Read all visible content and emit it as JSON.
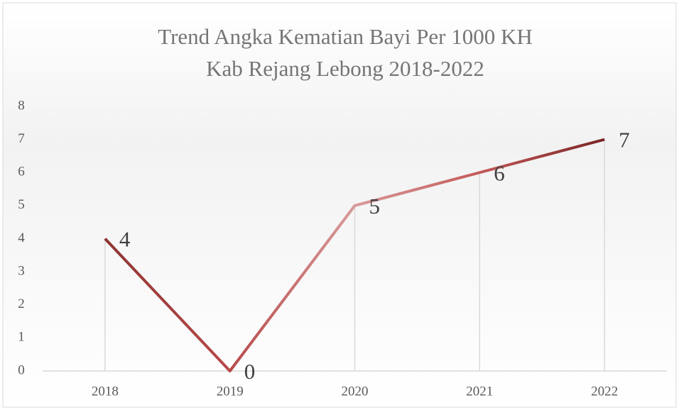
{
  "chart_data": {
    "type": "line",
    "title": [
      "Trend Angka Kematian Bayi Per 1000 KH",
      "Kab Rejang Lebong 2018-2022"
    ],
    "categories": [
      "2018",
      "2019",
      "2020",
      "2021",
      "2022"
    ],
    "values": [
      4,
      0,
      5,
      6,
      7
    ],
    "color": "#a33a3a",
    "ylim": [
      0,
      8
    ],
    "yticks": [
      0,
      1,
      2,
      3,
      4,
      5,
      6,
      7,
      8
    ],
    "grid": false,
    "drop_lines": true,
    "data_labels": true
  }
}
